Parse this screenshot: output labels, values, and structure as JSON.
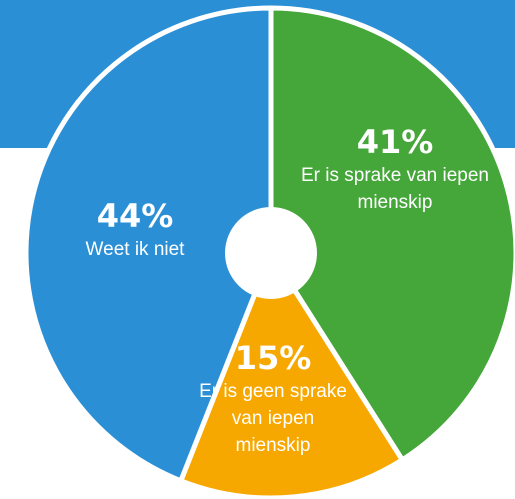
{
  "chart_data": {
    "type": "pie",
    "categories": [
      "Er is sprake van iepen mienskip",
      "Er is geen sprake van iepen mienskip",
      "Weet ik niet"
    ],
    "values": [
      41,
      15,
      44
    ],
    "value_labels": [
      "41%",
      "15%",
      "44%"
    ],
    "colors": [
      "#45a73a",
      "#f6a800",
      "#2b8fd6"
    ],
    "donut": true
  }
}
